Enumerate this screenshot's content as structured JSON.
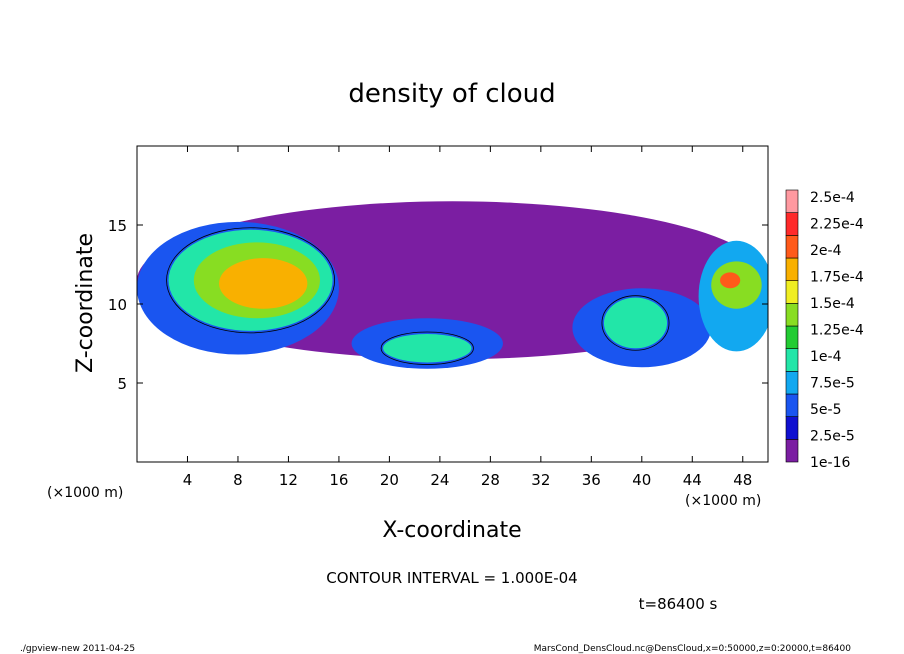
{
  "chart_data": {
    "type": "heatmap",
    "title": "density of cloud",
    "xlabel": "X-coordinate",
    "ylabel": "Z-coordinate",
    "x_unit_left": "(×1000 m)",
    "x_unit_right": "(×1000 m)",
    "xlim": [
      0,
      50
    ],
    "ylim": [
      0,
      20
    ],
    "xticks": [
      4,
      8,
      12,
      16,
      20,
      24,
      28,
      32,
      36,
      40,
      44,
      48
    ],
    "yticks": [
      5,
      10,
      15
    ],
    "colorbar": {
      "labels": [
        "1e-16",
        "2.5e-5",
        "5e-5",
        "7.5e-5",
        "1e-4",
        "1.25e-4",
        "1.5e-4",
        "1.75e-4",
        "2e-4",
        "2.25e-4",
        "2.5e-4"
      ],
      "colors": [
        "#7b1ea2",
        "#1010d0",
        "#1a55f0",
        "#12a8f0",
        "#22e6a8",
        "#22cc33",
        "#88dd22",
        "#f0ee22",
        "#f9b000",
        "#ff5a1a",
        "#ff2a2a",
        "#ff99a0"
      ]
    },
    "blobs": [
      {
        "x": 25,
        "z": 11.5,
        "rx": 25,
        "rz": 5.0,
        "level": 0
      },
      {
        "x": 8,
        "z": 11,
        "rx": 8,
        "rz": 4.2,
        "level": 2
      },
      {
        "x": 9,
        "z": 11.5,
        "rx": 6.5,
        "rz": 3.2,
        "level": 4
      },
      {
        "x": 9.5,
        "z": 11.5,
        "rx": 5,
        "rz": 2.4,
        "level": 6
      },
      {
        "x": 10,
        "z": 11.3,
        "rx": 3.5,
        "rz": 1.6,
        "level": 8
      },
      {
        "x": 23,
        "z": 7.5,
        "rx": 6,
        "rz": 1.6,
        "level": 2
      },
      {
        "x": 23,
        "z": 7.2,
        "rx": 3.5,
        "rz": 0.9,
        "level": 4
      },
      {
        "x": 40,
        "z": 8.5,
        "rx": 5.5,
        "rz": 2.5,
        "level": 2
      },
      {
        "x": 39.5,
        "z": 8.8,
        "rx": 2.5,
        "rz": 1.6,
        "level": 4
      },
      {
        "x": 47.5,
        "z": 10.5,
        "rx": 3,
        "rz": 3.5,
        "level": 3
      },
      {
        "x": 47.5,
        "z": 11.2,
        "rx": 2,
        "rz": 1.5,
        "level": 6
      },
      {
        "x": 47,
        "z": 11.5,
        "rx": 0.8,
        "rz": 0.5,
        "level": 9
      }
    ],
    "contour_interval_text": "CONTOUR INTERVAL = 1.000E-04",
    "time_text": "t=86400 s"
  },
  "footer": {
    "left": "./gpview-new   2011-04-25",
    "right": "MarsCond_DensCloud.nc@DensCloud,x=0:50000,z=0:20000,t=86400"
  }
}
